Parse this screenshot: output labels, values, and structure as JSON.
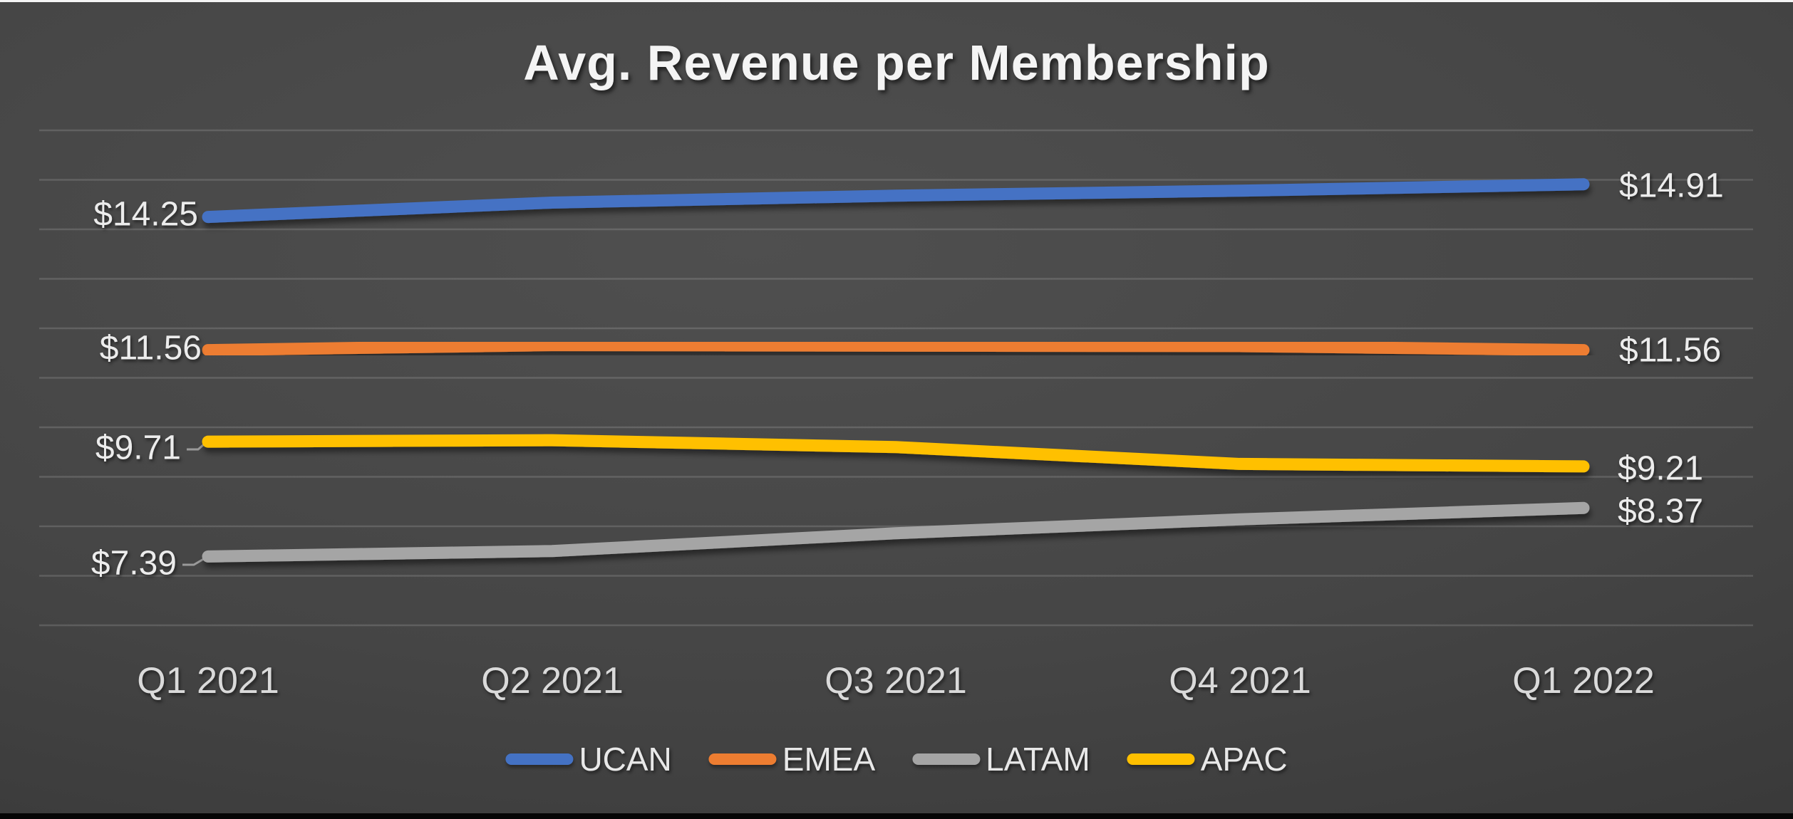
{
  "title": "Avg. Revenue per Membership",
  "chart_data": {
    "type": "line",
    "categories": [
      "Q1 2021",
      "Q2 2021",
      "Q3 2021",
      "Q4 2021",
      "Q1 2022"
    ],
    "series": [
      {
        "name": "UCAN",
        "color": "#4472C4",
        "values": [
          14.25,
          14.54,
          14.68,
          14.78,
          14.91
        ],
        "label_start": "$14.25",
        "label_end": "$14.91"
      },
      {
        "name": "EMEA",
        "color": "#ED7D31",
        "values": [
          11.56,
          11.66,
          11.65,
          11.64,
          11.56
        ],
        "label_start": "$11.56",
        "label_end": "$11.56"
      },
      {
        "name": "LATAM",
        "color": "#A5A5A5",
        "values": [
          7.39,
          7.5,
          7.86,
          8.14,
          8.37
        ],
        "label_start": "$7.39",
        "label_end": "$8.37"
      },
      {
        "name": "APAC",
        "color": "#FFC000",
        "values": [
          9.71,
          9.74,
          9.6,
          9.26,
          9.21
        ],
        "label_start": "$9.71",
        "label_end": "$9.21"
      }
    ],
    "ylim": [
      6,
      16
    ],
    "grid": true,
    "legend_position": "bottom",
    "gridline_color": "#5c5c5c",
    "background_color": "#3f3f3f",
    "text_color": "#ececec"
  }
}
